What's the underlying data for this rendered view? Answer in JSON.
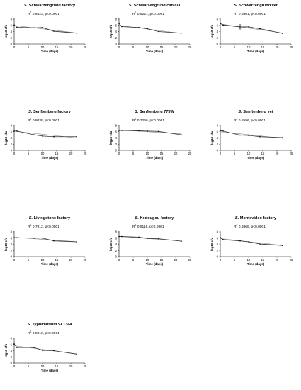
{
  "figure": {
    "panels": [
      {
        "title_prefix": "S.",
        "title": "Schwarzengrund factory",
        "stat": {
          "r2_base": "R",
          "r2_sup": "2",
          "r2_value": "0.8523",
          "p": "p<0.0001"
        }
      },
      {
        "title_prefix": "S.",
        "title": "Schwarzengrund clinical",
        "stat": {
          "r2_base": "R",
          "r2_sup": "2",
          "r2_value": "0.9221",
          "p": "p<0.0001"
        }
      },
      {
        "title_prefix": "S.",
        "title": "Schwarzengrund vet",
        "stat": {
          "r2_base": "R",
          "r2_sup": "2",
          "r2_value": "0.9301",
          "p": "p<0.0001"
        }
      },
      {
        "title_prefix": "S.",
        "title": "Senftenberg factory",
        "stat": {
          "r2_base": "R",
          "r2_sup": "2",
          "r2_value": "0.8038",
          "p": "p<0.0001"
        }
      },
      {
        "title_prefix": "S.",
        "title": "Senftenberg 775W",
        "stat": {
          "r2_base": "R",
          "r2_sup": "2",
          "r2_value": "0.7266",
          "p": "p<0.0001"
        }
      },
      {
        "title_prefix": "S.",
        "title": "Senftenberg vet",
        "stat": {
          "r2_base": "R",
          "r2_sup": "2",
          "r2_value": "0.8596",
          "p": "p<0.0001"
        }
      },
      {
        "title_prefix": "S.",
        "title": "Livingstone factory",
        "stat": {
          "r2_base": "R",
          "r2_sup": "2",
          "r2_value": "0.7912",
          "p": "p<0.0001"
        }
      },
      {
        "title_prefix": "S.",
        "title": "Kedougou factory",
        "stat": {
          "r2_base": "R",
          "r2_sup": "2",
          "r2_value": "0.9118",
          "p": "p<0.0001"
        }
      },
      {
        "title_prefix": "S.",
        "title": "Montevideo factory",
        "stat": {
          "r2_base": "R",
          "r2_sup": "2",
          "r2_value": "0.9369",
          "p": "p<0.0001"
        }
      },
      {
        "title_prefix": "S.",
        "title": "Typhimurium SL1344",
        "stat": {
          "r2_base": "R",
          "r2_sup": "2",
          "r2_value": "0.8910",
          "p": "p<0.0001"
        }
      }
    ]
  },
  "chart_data": [
    {
      "type": "line",
      "title": "S. Schwarzengrund factory",
      "xlabel": "Time (days)",
      "ylabel": "log10 cfu",
      "xlim": [
        0,
        25
      ],
      "ylim": [
        0,
        8
      ],
      "xticks": [
        "0",
        "5",
        "10",
        "15",
        "20",
        "25"
      ],
      "yticks": [
        "0",
        "2",
        "4",
        "6",
        "8"
      ],
      "series": [
        {
          "kind": "observed",
          "x": [
            0,
            1,
            7,
            10,
            14,
            22
          ],
          "y": [
            6.1,
            5.4,
            5.2,
            5.3,
            4.1,
            3.5
          ]
        },
        {
          "kind": "regression",
          "x": [
            0,
            22
          ],
          "y": [
            5.95,
            3.55
          ]
        }
      ],
      "r2": 0.8523,
      "p": "p<0.0001"
    },
    {
      "type": "line",
      "title": "S. Schwarzengrund clinical",
      "xlabel": "Time (days)",
      "ylabel": "log10 cfu",
      "xlim": [
        0,
        25
      ],
      "ylim": [
        0,
        8
      ],
      "xticks": [
        "0",
        "5",
        "10",
        "15",
        "20",
        "25"
      ],
      "yticks": [
        "0",
        "2",
        "4",
        "6",
        "8"
      ],
      "series": [
        {
          "kind": "observed",
          "x": [
            0,
            1,
            7,
            10,
            14,
            22
          ],
          "y": [
            6.6,
            5.6,
            5.3,
            4.9,
            4.0,
            3.5
          ]
        },
        {
          "kind": "regression",
          "x": [
            0,
            22
          ],
          "y": [
            6.0,
            3.4
          ]
        }
      ],
      "r2": 0.9221,
      "p": "p<0.0001"
    },
    {
      "type": "line",
      "title": "S. Schwarzengrund vet",
      "xlabel": "Time (days)",
      "ylabel": "log10 cfu",
      "xlim": [
        0,
        25
      ],
      "ylim": [
        0,
        8
      ],
      "xticks": [
        "0",
        "5",
        "10",
        "15",
        "20",
        "25"
      ],
      "yticks": [
        "0",
        "2",
        "4",
        "6",
        "8"
      ],
      "series": [
        {
          "kind": "observed",
          "x": [
            0,
            1,
            7,
            10,
            14,
            22
          ],
          "y": [
            6.6,
            6.1,
            5.5,
            5.5,
            4.9,
            3.4
          ],
          "error": [
            0,
            0,
            0.7,
            0,
            0,
            0
          ]
        },
        {
          "kind": "regression",
          "x": [
            0,
            22
          ],
          "y": [
            6.45,
            3.55
          ]
        }
      ],
      "r2": 0.9301,
      "p": "p<0.0001"
    },
    {
      "type": "line",
      "title": "S. Senftenberg factory",
      "xlabel": "Time (days)",
      "ylabel": "log10 cfu",
      "xlim": [
        0,
        25
      ],
      "ylim": [
        0,
        8
      ],
      "xticks": [
        "0",
        "5",
        "10",
        "15",
        "20",
        "25"
      ],
      "yticks": [
        "0",
        "2",
        "4",
        "6",
        "8"
      ],
      "series": [
        {
          "kind": "observed",
          "x": [
            0,
            1,
            7,
            10,
            14,
            22
          ],
          "y": [
            6.2,
            6.2,
            5.0,
            4.6,
            4.4,
            4.4
          ]
        },
        {
          "kind": "regression",
          "x": [
            0,
            22
          ],
          "y": [
            6.15,
            4.0
          ]
        }
      ],
      "r2": 0.8038,
      "p": "p<0.0001"
    },
    {
      "type": "line",
      "title": "S. Senftenberg 775W",
      "xlabel": "Time (days)",
      "ylabel": "log10 cfu",
      "xlim": [
        0,
        25
      ],
      "ylim": [
        0,
        8
      ],
      "xticks": [
        "0",
        "5",
        "10",
        "15",
        "20",
        "25"
      ],
      "yticks": [
        "0",
        "2",
        "4",
        "6",
        "8"
      ],
      "series": [
        {
          "kind": "observed",
          "x": [
            0,
            1,
            7,
            10,
            14,
            22
          ],
          "y": [
            6.4,
            6.4,
            6.3,
            6.2,
            6.1,
            5.0
          ]
        },
        {
          "kind": "regression",
          "x": [
            0,
            22
          ],
          "y": [
            6.55,
            5.35
          ]
        }
      ],
      "r2": 0.7266,
      "p": "p<0.0001"
    },
    {
      "type": "line",
      "title": "S. Senftenberg vet",
      "xlabel": "Time (days)",
      "ylabel": "log10 cfu",
      "xlim": [
        0,
        25
      ],
      "ylim": [
        0,
        8
      ],
      "xticks": [
        "0",
        "5",
        "10",
        "15",
        "20",
        "25"
      ],
      "yticks": [
        "0",
        "2",
        "4",
        "6",
        "8"
      ],
      "series": [
        {
          "kind": "observed",
          "x": [
            0,
            1,
            7,
            10,
            14,
            22
          ],
          "y": [
            6.3,
            6.2,
            4.9,
            4.8,
            4.4,
            4.1
          ]
        },
        {
          "kind": "regression",
          "x": [
            0,
            22
          ],
          "y": [
            6.0,
            3.9
          ]
        }
      ],
      "r2": 0.8596,
      "p": "p<0.0001"
    },
    {
      "type": "line",
      "title": "S. Livingstone factory",
      "xlabel": "Time (days)",
      "ylabel": "log10 cfu",
      "xlim": [
        0,
        25
      ],
      "ylim": [
        0,
        8
      ],
      "xticks": [
        "0",
        "5",
        "10",
        "15",
        "20",
        "25"
      ],
      "yticks": [
        "0",
        "2",
        "4",
        "6",
        "8"
      ],
      "series": [
        {
          "kind": "observed",
          "x": [
            0,
            1,
            7,
            10,
            14,
            22
          ],
          "y": [
            6.1,
            6.1,
            6.0,
            6.0,
            5.1,
            4.8
          ]
        },
        {
          "kind": "regression",
          "x": [
            0,
            22
          ],
          "y": [
            6.25,
            4.85
          ]
        }
      ],
      "r2": 0.7912,
      "p": "p<0.0001"
    },
    {
      "type": "line",
      "title": "S. Kedougou factory",
      "xlabel": "Time (days)",
      "ylabel": "log10 cfu",
      "xlim": [
        0,
        25
      ],
      "ylim": [
        0,
        8
      ],
      "xticks": [
        "0",
        "5",
        "10",
        "15",
        "20",
        "25"
      ],
      "yticks": [
        "0",
        "2",
        "4",
        "6",
        "8"
      ],
      "series": [
        {
          "kind": "observed",
          "x": [
            0,
            1,
            7,
            10,
            14,
            22
          ],
          "y": [
            6.5,
            6.5,
            6.3,
            5.9,
            5.8,
            5.0
          ]
        },
        {
          "kind": "regression",
          "x": [
            0,
            22
          ],
          "y": [
            6.55,
            5.05
          ]
        }
      ],
      "r2": 0.9118,
      "p": "p<0.0001"
    },
    {
      "type": "line",
      "title": "S. Montevideo factory",
      "xlabel": "Time (days)",
      "ylabel": "log10 cfu",
      "xlim": [
        0,
        25
      ],
      "ylim": [
        0,
        8
      ],
      "xticks": [
        "0",
        "5",
        "10",
        "15",
        "20",
        "25"
      ],
      "yticks": [
        "0",
        "2",
        "4",
        "6",
        "8"
      ],
      "series": [
        {
          "kind": "observed",
          "x": [
            0,
            1,
            7,
            10,
            14,
            22
          ],
          "y": [
            6.2,
            5.5,
            5.1,
            4.8,
            4.1,
            3.6
          ]
        },
        {
          "kind": "regression",
          "x": [
            0,
            22
          ],
          "y": [
            5.85,
            3.65
          ]
        }
      ],
      "r2": 0.9369,
      "p": "p<0.0001"
    },
    {
      "type": "line",
      "title": "S. Typhimurium SL1344",
      "xlabel": "Time (days)",
      "ylabel": "log10 cfu",
      "xlim": [
        0,
        25
      ],
      "ylim": [
        0,
        8
      ],
      "xticks": [
        "0",
        "5",
        "10",
        "15",
        "20",
        "25"
      ],
      "yticks": [
        "0",
        "2",
        "4",
        "6",
        "8"
      ],
      "series": [
        {
          "kind": "observed",
          "x": [
            0,
            1,
            7,
            10,
            14,
            22
          ],
          "y": [
            6.2,
            5.0,
            5.0,
            4.1,
            4.0,
            2.9
          ]
        },
        {
          "kind": "regression",
          "x": [
            0,
            22
          ],
          "y": [
            5.6,
            3.0
          ]
        }
      ],
      "r2": 0.891,
      "p": "p<0.0001"
    }
  ]
}
